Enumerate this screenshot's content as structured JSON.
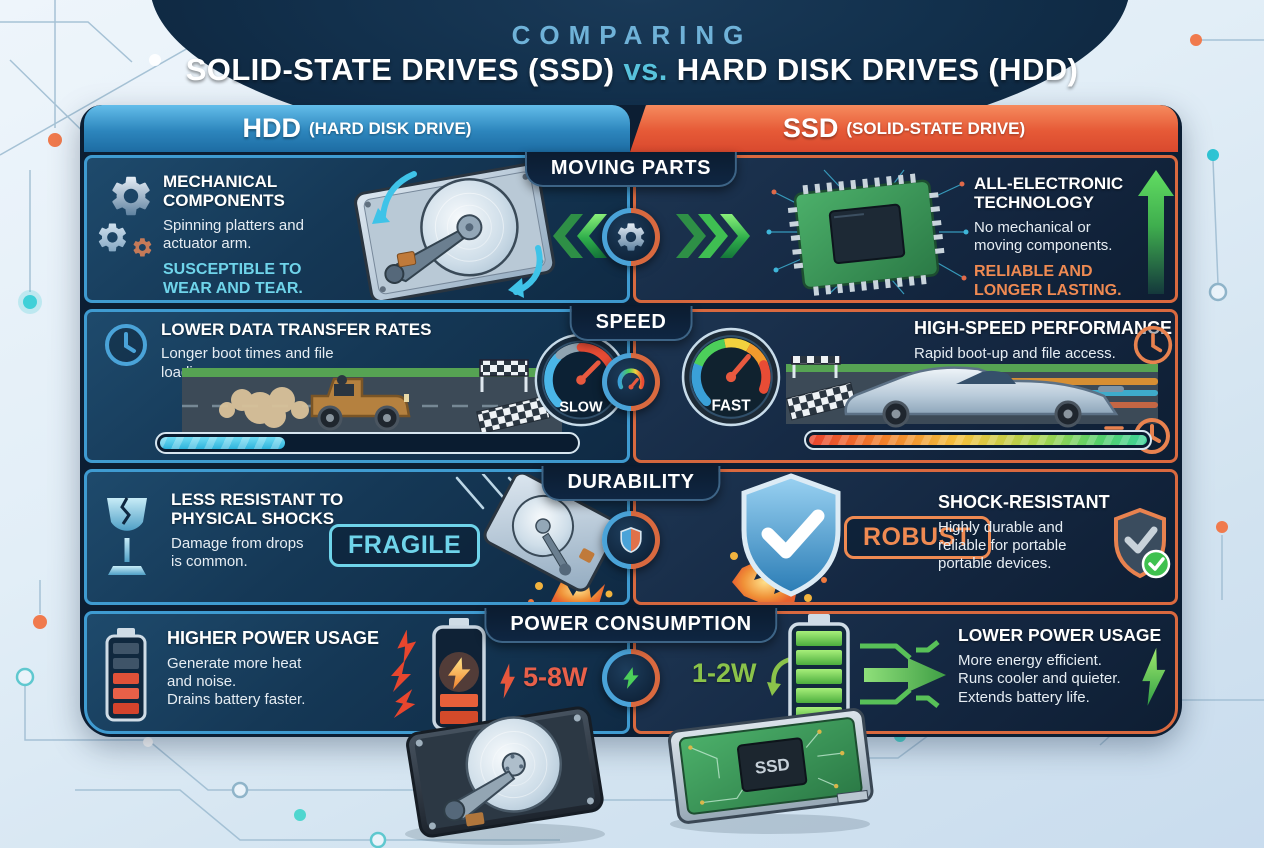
{
  "title": {
    "kicker": "COMPARING",
    "line_left": "SOLID-STATE DRIVES (SSD)",
    "vs": "vs.",
    "line_right": "HARD DISK DRIVES (HDD)"
  },
  "columns": {
    "hdd": {
      "abbr": "HDD",
      "full": "(HARD DISK DRIVE)"
    },
    "ssd": {
      "abbr": "SSD",
      "full": "(SOLID-STATE DRIVE)"
    }
  },
  "rows": [
    {
      "category": "MOVING PARTS",
      "hdd": {
        "heading": "MECHANICAL\nCOMPONENTS",
        "body": "Spinning platters and\nactuator arm.",
        "highlight": "SUSCEPTIBLE TO\nWEAR AND TEAR."
      },
      "ssd": {
        "heading": "ALL-ELECTRONIC\nTECHNOLOGY",
        "body": "No mechanical or\nmoving components.",
        "highlight": "RELIABLE AND\nLONGER LASTING."
      }
    },
    {
      "category": "SPEED",
      "hdd": {
        "heading": "LOWER DATA TRANSFER RATES",
        "body": "Longer boot times and file\nloading.",
        "gauge_label": "SLOW",
        "progress_percent": 30
      },
      "ssd": {
        "heading": "HIGH-SPEED PERFORMANCE",
        "body": "Rapid boot-up and file access.",
        "gauge_label": "FAST",
        "progress_percent": 100
      }
    },
    {
      "category": "DURABILITY",
      "hdd": {
        "heading": "LESS RESISTANT TO\nPHYSICAL SHOCKS",
        "body": "Damage from drops\nis common.",
        "badge": "FRAGILE"
      },
      "ssd": {
        "heading": "SHOCK-RESISTANT",
        "body": "Highly durable and\nreliable for portable\nportable devices.",
        "badge": "ROBUST"
      }
    },
    {
      "category": "POWER CONSUMPTION",
      "hdd": {
        "heading": "HIGHER POWER USAGE",
        "body": "Generate more heat\nand noise.\nDrains battery faster.",
        "wattage": "5-8W"
      },
      "ssd": {
        "heading": "LOWER POWER USAGE",
        "body": "More energy efficient.\nRuns cooler and quieter.\nExtends battery life.",
        "wattage": "1-2W"
      }
    }
  ],
  "bottom": {
    "ssd_chip_label": "SSD"
  },
  "icon_names": [
    "gear-icon",
    "clock-icon",
    "speedometer-icon",
    "shield-icon",
    "shield-check-icon",
    "fragile-glass-icon",
    "battery-icon",
    "lightning-icon",
    "up-arrow-icon",
    "chevron-left-icon",
    "chevron-right-icon",
    "checkered-flag",
    "hdd-internals-illustration",
    "ssd-chip-illustration",
    "old-car-illustration",
    "sports-car-illustration"
  ],
  "colors": {
    "hdd_header": "#2d86bd",
    "ssd_header": "#e65a37",
    "hdd_cell_border": "#3f9bd1",
    "ssd_cell_border": "#d9693f",
    "cyan_accent": "#6fd4ea",
    "orange_accent": "#ef8a52",
    "green_accent": "#4ccf5a",
    "watt_red": "#e8604a",
    "watt_green": "#8bc34a",
    "panel_bg": "#0c1e33",
    "page_bg": "#dfecf6",
    "title_kicker": "#6fb2d8"
  }
}
